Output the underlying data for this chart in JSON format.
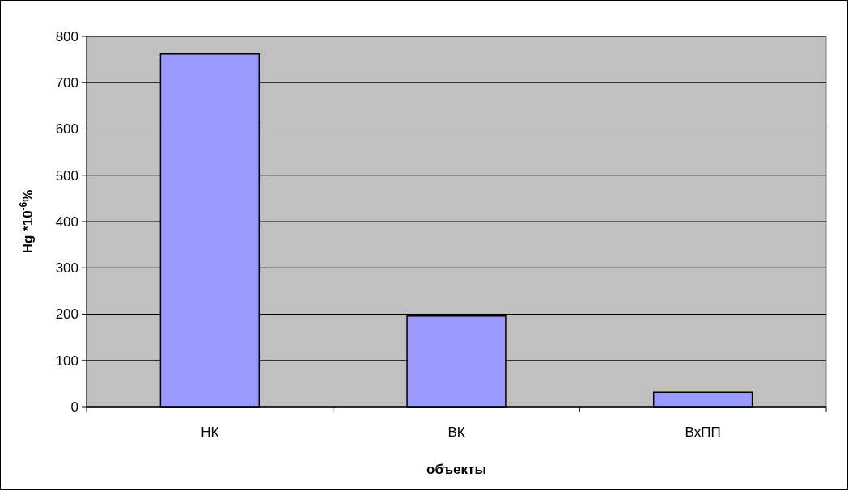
{
  "chart_data": {
    "type": "bar",
    "xlabel": "объекты",
    "ylabel": "Hg *10$^{-6}$%",
    "categories": [
      "НК",
      "ВК",
      "ВхПП"
    ],
    "values": [
      762,
      196,
      31
    ],
    "color": "#9999ff",
    "ylim": [
      0,
      800
    ],
    "yticks": [
      0,
      100,
      200,
      300,
      400,
      500,
      600,
      700,
      800
    ],
    "grid": "y"
  }
}
